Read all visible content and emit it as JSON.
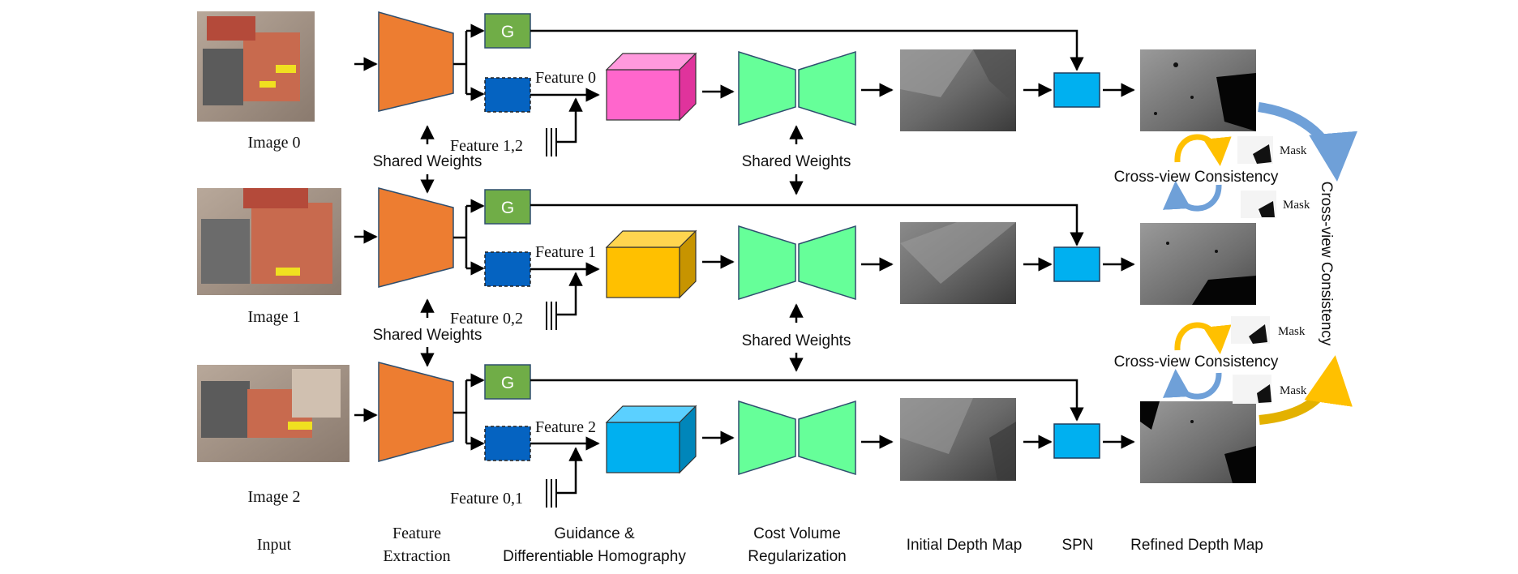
{
  "colors": {
    "encoder": "#ED7D31",
    "guidance": "#70AD47",
    "feature_box": "#0563C1",
    "regularization": "#66FF99",
    "spn": "#00B0F0",
    "volume_0": "#FF66CC",
    "volume_1": "#FFC000",
    "volume_2": "#00B0F0",
    "arrow_gold": "#FFC000",
    "arrow_blue": "#6FA0D8"
  },
  "rows": [
    {
      "image_label": "Image 0",
      "feature_label": "Feature 0",
      "other_features_label": "Feature 1,2",
      "guidance_label": "G"
    },
    {
      "image_label": "Image 1",
      "feature_label": "Feature 1",
      "other_features_label": "Feature 0,2",
      "guidance_label": "G"
    },
    {
      "image_label": "Image 2",
      "feature_label": "Feature 2",
      "other_features_label": "Feature 0,1",
      "guidance_label": "G"
    }
  ],
  "shared_weights": "Shared Weights",
  "consistency": {
    "label": "Cross-view Consistency",
    "vertical_label": "Cross-view Consistency",
    "mask_label": "Mask"
  },
  "columns": {
    "input": "Input",
    "feature_extraction_1": "Feature",
    "feature_extraction_2": "Extraction",
    "guidance_1": "Guidance &",
    "guidance_2": "Differentiable Homography",
    "cost_volume_1": "Cost Volume",
    "cost_volume_2": "Regularization",
    "initial_depth": "Initial Depth Map",
    "spn": "SPN",
    "refined_depth": "Refined Depth Map"
  }
}
